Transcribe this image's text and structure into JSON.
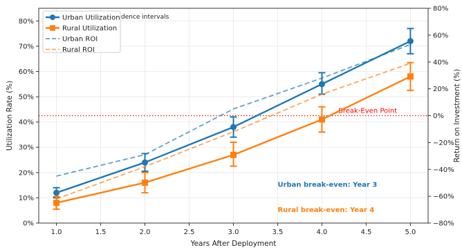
{
  "chart_data": {
    "type": "line",
    "xlabel": "Years After Deployment",
    "ylabel_left": "Utilization Rate (%)",
    "ylabel_right": "Return on Investment (%)",
    "x": [
      1,
      2,
      3,
      4,
      5
    ],
    "xlim": [
      0.8,
      5.2
    ],
    "ylim_left": [
      0,
      85
    ],
    "ylim_right": [
      -80,
      80
    ],
    "x_ticks": [
      1.0,
      1.5,
      2.0,
      2.5,
      3.0,
      3.5,
      4.0,
      4.5,
      5.0
    ],
    "x_tick_labels": [
      "1.0",
      "1.5",
      "2.0",
      "2.5",
      "3.0",
      "3.5",
      "4.0",
      "4.5",
      "5.0"
    ],
    "y_left_ticks": [
      0,
      10,
      20,
      30,
      40,
      50,
      60,
      70,
      80
    ],
    "y_left_tick_labels": [
      "0%",
      "10%",
      "20%",
      "30%",
      "40%",
      "50%",
      "60%",
      "70%",
      "80%"
    ],
    "y_right_ticks": [
      -80,
      -60,
      -40,
      -20,
      0,
      20,
      40,
      60,
      80
    ],
    "y_right_tick_labels": [
      "−80%",
      "−60%",
      "−40%",
      "−20%",
      "0%",
      "20%",
      "40%",
      "60%",
      "80%"
    ],
    "grid": true,
    "legend_position": "top-left",
    "legend_partial_text": "dence intervals",
    "series": [
      {
        "name": "Urban Utilization",
        "axis": "left",
        "style": "solid",
        "marker": "circle",
        "color": "#1f77b4",
        "values": [
          12,
          24,
          38,
          55,
          72
        ],
        "error_low": [
          10,
          20.5,
          34,
          51,
          67
        ],
        "error_high": [
          14,
          27.5,
          42,
          59.5,
          77
        ]
      },
      {
        "name": "Rural Utilization",
        "axis": "left",
        "style": "solid",
        "marker": "square",
        "color": "#ff7f0e",
        "values": [
          8,
          16,
          27,
          41,
          58
        ],
        "error_low": [
          5.5,
          12,
          22.5,
          36,
          52.5
        ],
        "error_high": [
          10.5,
          20,
          32,
          46,
          63.5
        ]
      },
      {
        "name": "Urban ROI",
        "axis": "right",
        "style": "dashed",
        "color": "#1f77b4",
        "values": [
          -45,
          -29,
          5,
          28,
          53
        ]
      },
      {
        "name": "Rural ROI",
        "axis": "right",
        "style": "dashed",
        "color": "#ff7f0e",
        "values": [
          -62,
          -38,
          -12,
          16,
          39
        ]
      }
    ],
    "reference_line": {
      "label": "Break-Even Point",
      "axis": "right",
      "value": 0,
      "color": "#ff0000"
    },
    "annotations": [
      {
        "text": "Urban break-even: Year 3",
        "x": 3.5,
        "y": 15.5,
        "color": "#1f77b4"
      },
      {
        "text": "Rural break-even: Year 4",
        "x": 3.5,
        "y": 5.5,
        "color": "#ff7f0e"
      }
    ]
  }
}
